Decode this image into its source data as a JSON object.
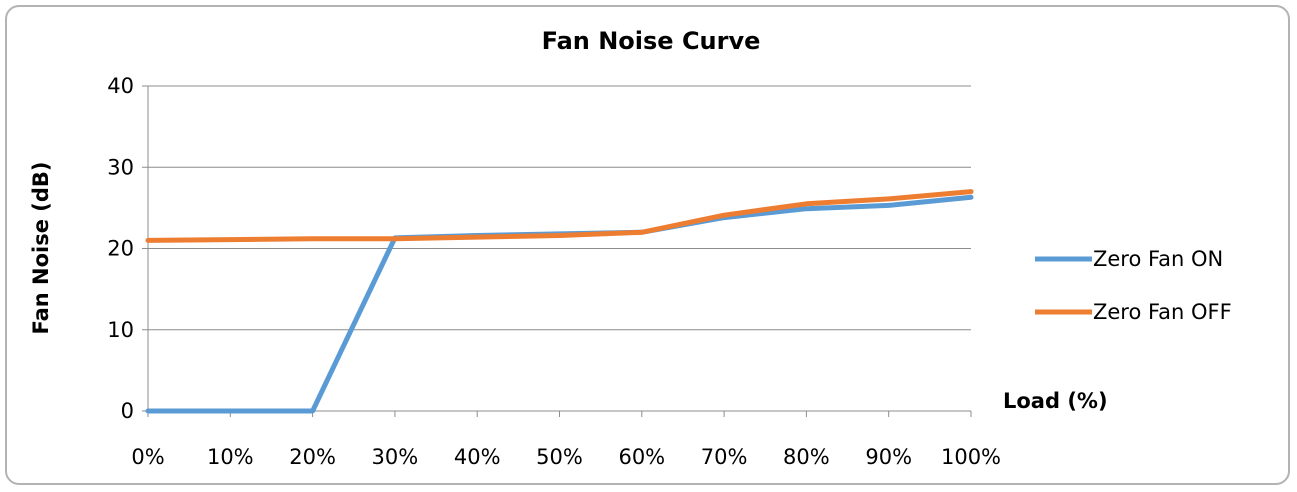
{
  "chart_data": {
    "type": "line",
    "title": "Fan Noise Curve",
    "xlabel": "Load (%)",
    "ylabel": "Fan Noise (dB)",
    "categories": [
      "0%",
      "10%",
      "20%",
      "30%",
      "40%",
      "50%",
      "60%",
      "70%",
      "80%",
      "90%",
      "100%"
    ],
    "y_ticks": [
      "0",
      "10",
      "20",
      "30",
      "40"
    ],
    "ylim": [
      0,
      40
    ],
    "grid": true,
    "legend_position": "right",
    "series": [
      {
        "name": "Zero Fan ON",
        "color": "#5b9bd5",
        "values": [
          0,
          0,
          0,
          21.3,
          21.6,
          21.8,
          22.0,
          23.8,
          24.9,
          25.3,
          26.3
        ]
      },
      {
        "name": "Zero Fan OFF",
        "color": "#ed7d31",
        "values": [
          21.0,
          21.1,
          21.2,
          21.2,
          21.4,
          21.6,
          22.0,
          24.1,
          25.5,
          26.1,
          27.0
        ]
      }
    ]
  }
}
